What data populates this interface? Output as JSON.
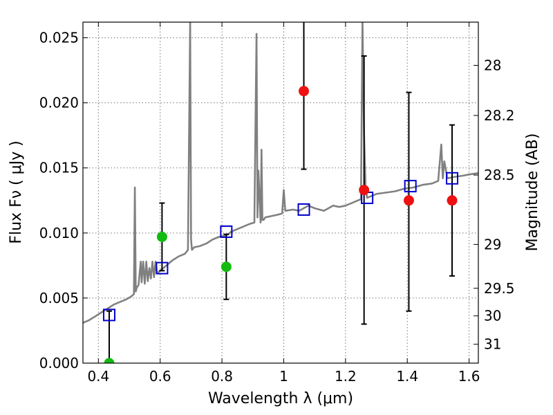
{
  "chart_data": {
    "type": "scatter",
    "xlabel": "Wavelength  λ (μm)",
    "ylabel": "Flux  Fν  ( μJy )",
    "y2label": "Magnitude (AB)",
    "xlim": [
      0.35,
      1.63
    ],
    "ylim": [
      0.0,
      0.0262
    ],
    "grid": true,
    "x_ticks": [
      0.4,
      0.6,
      0.8,
      1.0,
      1.2,
      1.4,
      1.6
    ],
    "x_tick_labels": [
      "0.4",
      "0.6",
      "0.8",
      "1",
      "1.2",
      "1.4",
      "1.6"
    ],
    "y_ticks": [
      0.0,
      0.005,
      0.01,
      0.015,
      0.02,
      0.025
    ],
    "y_tick_labels": [
      "0.000",
      "0.005",
      "0.010",
      "0.015",
      "0.020",
      "0.025"
    ],
    "magnitude_ticks": [
      {
        "label": "28",
        "flux": 0.02288
      },
      {
        "label": "28.2",
        "flux": 0.01903
      },
      {
        "label": "28.5",
        "flux": 0.01445
      },
      {
        "label": "29",
        "flux": 0.00912
      },
      {
        "label": "29.5",
        "flux": 0.00575
      },
      {
        "label": "30",
        "flux": 0.00363
      },
      {
        "label": "31",
        "flux": 0.00145
      }
    ],
    "colors": {
      "sed": "#808080",
      "model_photometry": "#0000cc",
      "detections": "#ee1111",
      "upper_limits": "#11bb11",
      "errorbars": "#000000"
    },
    "series": [
      {
        "kind": "line",
        "color": "#808080",
        "x": [
          0.35,
          0.37,
          0.39,
          0.41,
          0.43,
          0.45,
          0.47,
          0.49,
          0.505,
          0.515,
          0.518,
          0.521,
          0.524,
          0.53,
          0.537,
          0.54,
          0.545,
          0.55,
          0.555,
          0.56,
          0.565,
          0.57,
          0.575,
          0.58,
          0.585,
          0.59,
          0.6,
          0.62,
          0.64,
          0.66,
          0.68,
          0.69,
          0.697,
          0.7,
          0.703,
          0.71,
          0.73,
          0.75,
          0.77,
          0.79,
          0.81,
          0.82,
          0.83,
          0.85,
          0.87,
          0.89,
          0.905,
          0.912,
          0.915,
          0.918,
          0.925,
          0.928,
          0.931,
          0.935,
          0.94,
          0.96,
          0.98,
          0.995,
          1.0,
          1.005,
          1.03,
          1.05,
          1.08,
          1.1,
          1.13,
          1.16,
          1.18,
          1.2,
          1.22,
          1.24,
          1.25,
          1.255,
          1.26,
          1.265,
          1.27,
          1.28,
          1.3,
          1.33,
          1.36,
          1.39,
          1.42,
          1.45,
          1.48,
          1.5,
          1.51,
          1.515,
          1.52,
          1.53,
          1.55,
          1.58,
          1.6,
          1.63
        ],
        "y": [
          0.0031,
          0.0033,
          0.0036,
          0.0039,
          0.0042,
          0.0045,
          0.0047,
          0.0049,
          0.0051,
          0.0053,
          0.0135,
          0.0055,
          0.0058,
          0.006,
          0.0078,
          0.0062,
          0.0078,
          0.0061,
          0.0078,
          0.0063,
          0.0073,
          0.0065,
          0.0078,
          0.0066,
          0.0078,
          0.0069,
          0.0071,
          0.0075,
          0.0079,
          0.0082,
          0.0084,
          0.0087,
          0.0262,
          0.0095,
          0.0087,
          0.0089,
          0.009,
          0.0092,
          0.0095,
          0.0097,
          0.0098,
          0.0099,
          0.0101,
          0.0103,
          0.0105,
          0.0107,
          0.0108,
          0.0253,
          0.0112,
          0.0148,
          0.0108,
          0.0164,
          0.011,
          0.011,
          0.0112,
          0.0113,
          0.0114,
          0.0115,
          0.0133,
          0.0117,
          0.0118,
          0.0117,
          0.0121,
          0.0119,
          0.0117,
          0.0121,
          0.012,
          0.0121,
          0.0123,
          0.0125,
          0.0126,
          0.0262,
          0.0175,
          0.0135,
          0.0127,
          0.0128,
          0.013,
          0.0131,
          0.0132,
          0.0134,
          0.0135,
          0.0137,
          0.0138,
          0.014,
          0.0168,
          0.0142,
          0.0155,
          0.0142,
          0.0143,
          0.0144,
          0.0145,
          0.0146
        ]
      },
      {
        "kind": "squares",
        "color": "#0000cc",
        "points": [
          {
            "x": 0.435,
            "y": 0.0037
          },
          {
            "x": 0.606,
            "y": 0.0073
          },
          {
            "x": 0.814,
            "y": 0.0101
          },
          {
            "x": 1.065,
            "y": 0.0118
          },
          {
            "x": 1.27,
            "y": 0.0127
          },
          {
            "x": 1.41,
            "y": 0.0136
          },
          {
            "x": 1.545,
            "y": 0.0142
          }
        ]
      },
      {
        "kind": "circles",
        "color": "#11bb11",
        "points": [
          {
            "x": 0.435,
            "y": 0.0
          },
          {
            "x": 0.606,
            "y": 0.0097
          },
          {
            "x": 0.814,
            "y": 0.0074
          }
        ]
      },
      {
        "kind": "circles",
        "color": "#ee1111",
        "points": [
          {
            "x": 1.065,
            "y": 0.0209
          },
          {
            "x": 1.26,
            "y": 0.0133
          },
          {
            "x": 1.405,
            "y": 0.0125
          },
          {
            "x": 1.545,
            "y": 0.0125
          }
        ]
      }
    ],
    "errorbars": [
      {
        "x": 0.435,
        "ylo": 0.0,
        "yhi": 0.004
      },
      {
        "x": 0.606,
        "ylo": 0.0071,
        "yhi": 0.0123
      },
      {
        "x": 0.814,
        "ylo": 0.0049,
        "yhi": 0.0099
      },
      {
        "x": 1.065,
        "ylo": 0.0149,
        "yhi": 0.0268
      },
      {
        "x": 1.26,
        "ylo": 0.003,
        "yhi": 0.0236
      },
      {
        "x": 1.405,
        "ylo": 0.004,
        "yhi": 0.0208
      },
      {
        "x": 1.545,
        "ylo": 0.0067,
        "yhi": 0.0183
      }
    ]
  }
}
